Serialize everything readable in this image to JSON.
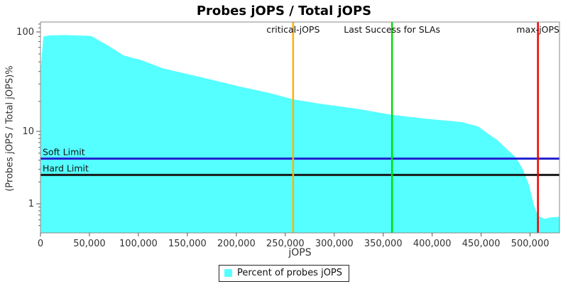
{
  "title": "Probes jOPS / Total jOPS",
  "axes": {
    "x_label": "jOPS",
    "y_label": "(Probes jOPS / Total jOPS)%",
    "x_ticks": [
      {
        "value": 0,
        "label": "0"
      },
      {
        "value": 50000,
        "label": "50,000"
      },
      {
        "value": 100000,
        "label": "100,000"
      },
      {
        "value": 150000,
        "label": "150,000"
      },
      {
        "value": 200000,
        "label": "200,000"
      },
      {
        "value": 250000,
        "label": "250,000"
      },
      {
        "value": 300000,
        "label": "300,000"
      },
      {
        "value": 350000,
        "label": "350,000"
      },
      {
        "value": 400000,
        "label": "400,000"
      },
      {
        "value": 450000,
        "label": "450,000"
      },
      {
        "value": 500000,
        "label": "500,000"
      }
    ],
    "y_ticks": [
      {
        "value": 100,
        "label": "100"
      },
      {
        "value": 10,
        "label": "10"
      },
      {
        "value": 1,
        "label": "1"
      }
    ],
    "y_minor_ticks": [
      120,
      110,
      90,
      80,
      70,
      60,
      50,
      40,
      30,
      20,
      9,
      8,
      7,
      6,
      5,
      4,
      3,
      2,
      0.9,
      0.8,
      0.7,
      0.6,
      0.5
    ]
  },
  "chart_data": {
    "type": "area",
    "title": "Probes jOPS / Total jOPS",
    "xlabel": "jOPS",
    "ylabel": "(Probes jOPS / Total jOPS)%",
    "y_scale": "log",
    "xlim": [
      0,
      530000
    ],
    "ylim": [
      0.4,
      126
    ],
    "grid": false,
    "legend_position": "bottom",
    "series": [
      {
        "name": "Percent of probes jOPS",
        "color": "#55FFFF",
        "points": [
          [
            400,
            45
          ],
          [
            3000,
            90
          ],
          [
            10000,
            92.5
          ],
          [
            25000,
            93
          ],
          [
            52000,
            91
          ],
          [
            70000,
            72
          ],
          [
            85000,
            58
          ],
          [
            103000,
            52
          ],
          [
            125000,
            43
          ],
          [
            146000,
            38.5
          ],
          [
            175000,
            33
          ],
          [
            205000,
            28
          ],
          [
            234000,
            24.3
          ],
          [
            258000,
            21
          ],
          [
            285000,
            19
          ],
          [
            321000,
            17
          ],
          [
            360000,
            14.6
          ],
          [
            394000,
            13.4
          ],
          [
            430000,
            12.4
          ],
          [
            447000,
            11.2
          ],
          [
            457000,
            9.3
          ],
          [
            467000,
            7.5
          ],
          [
            476000,
            5.7
          ],
          [
            486000,
            4.3
          ],
          [
            493000,
            2.9
          ],
          [
            499000,
            1.8
          ],
          [
            504000,
            0.95
          ],
          [
            508000,
            0.68
          ],
          [
            515000,
            0.62
          ],
          [
            521000,
            0.65
          ],
          [
            530000,
            0.66
          ]
        ]
      }
    ],
    "markers": {
      "vertical": [
        {
          "label": "critical-jOPS",
          "x": 258000,
          "color": "#FFB300"
        },
        {
          "label": "Last Success for SLAs",
          "x": 359000,
          "color": "#00DF00"
        },
        {
          "label": "max-jOPS",
          "x": 508000,
          "color": "#EE0000"
        }
      ],
      "horizontal": [
        {
          "label": "Soft Limit",
          "y": 4.2,
          "color": "#2121CE"
        },
        {
          "label": "Hard Limit",
          "y": 2.5,
          "color": "#1A1A1A"
        }
      ]
    }
  },
  "legend": {
    "items": [
      {
        "label": "Percent of probes jOPS",
        "color": "#55FFFF"
      }
    ]
  }
}
